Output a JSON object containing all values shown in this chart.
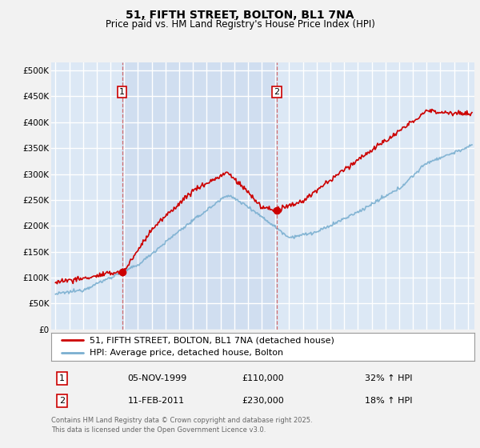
{
  "title": "51, FIFTH STREET, BOLTON, BL1 7NA",
  "subtitle": "Price paid vs. HM Land Registry's House Price Index (HPI)",
  "ylabel_ticks": [
    "£0",
    "£50K",
    "£100K",
    "£150K",
    "£200K",
    "£250K",
    "£300K",
    "£350K",
    "£400K",
    "£450K",
    "£500K"
  ],
  "ytick_values": [
    0,
    50000,
    100000,
    150000,
    200000,
    250000,
    300000,
    350000,
    400000,
    450000,
    500000
  ],
  "ylim": [
    0,
    515000
  ],
  "xlim_start": 1994.7,
  "xlim_end": 2025.5,
  "background_color": "#dce8f5",
  "highlight_color": "#c8d8ee",
  "grid_color": "#ffffff",
  "red_line_color": "#cc0000",
  "blue_line_color": "#7aafd0",
  "marker1_x": 1999.85,
  "marker1_y": 110000,
  "marker2_x": 2011.1,
  "marker2_y": 230000,
  "dashed_x1": 1999.85,
  "dashed_x2": 2011.1,
  "legend_line1": "51, FIFTH STREET, BOLTON, BL1 7NA (detached house)",
  "legend_line2": "HPI: Average price, detached house, Bolton",
  "table_row1_num": "1",
  "table_row1_date": "05-NOV-1999",
  "table_row1_price": "£110,000",
  "table_row1_hpi": "32% ↑ HPI",
  "table_row2_num": "2",
  "table_row2_date": "11-FEB-2011",
  "table_row2_price": "£230,000",
  "table_row2_hpi": "18% ↑ HPI",
  "footnote": "Contains HM Land Registry data © Crown copyright and database right 2025.\nThis data is licensed under the Open Government Licence v3.0.",
  "title_fontsize": 10,
  "subtitle_fontsize": 8.5,
  "tick_fontsize": 7.5,
  "legend_fontsize": 8
}
